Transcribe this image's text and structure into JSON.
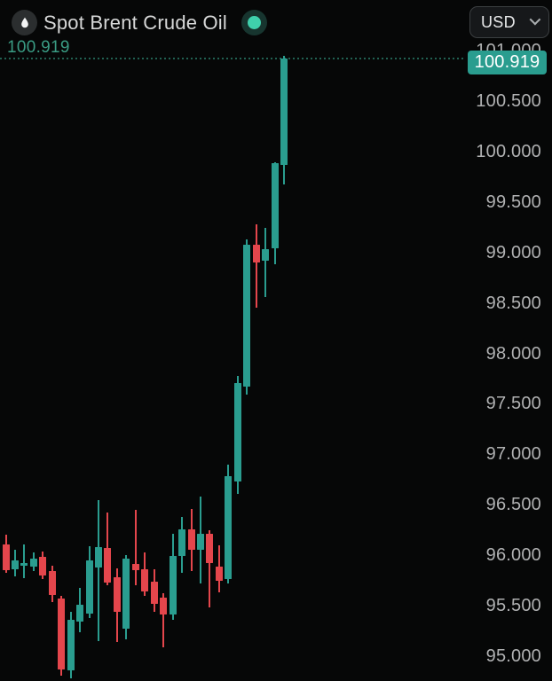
{
  "header": {
    "title": "Spot Brent Crude Oil",
    "instrument_icon": "oil-drop-icon",
    "live_indicator_icon": "live-status-dot",
    "currency_selector": {
      "value": "USD",
      "chevron_icon": "chevron-down-icon"
    }
  },
  "price_line": {
    "left_label": "100.919",
    "badge_label": "100.919"
  },
  "colors": {
    "background": "#060707",
    "up_candle": "#2a9d8f",
    "down_candle": "#e4464c",
    "badge_bg": "#2a9d8f",
    "badge_text": "#ffffff",
    "current_price_text": "#3a9c84",
    "dotted_line": "#216152",
    "axis_text": "#b0b1b2",
    "title_text": "#d7d8d8",
    "live_dot": "#3fd0ac",
    "live_ring": "#17352f",
    "icon_circle": "#2b2e2f",
    "button_bg": "#16181a",
    "button_border": "#3b3f41"
  },
  "chart_data": {
    "type": "candlestick",
    "title": "Spot Brent Crude Oil",
    "currency": "USD",
    "current_price": 100.919,
    "grid": false,
    "x_axis_labels": [],
    "y_axis": {
      "side": "right",
      "min": 95.0,
      "max": 101.0,
      "step": 0.5,
      "tick_labels": [
        "101.000",
        "100.500",
        "100.000",
        "99.500",
        "99.000",
        "98.500",
        "98.000",
        "97.500",
        "97.000",
        "96.500",
        "96.000",
        "95.500",
        "95.000"
      ]
    },
    "candles": [
      {
        "o": 96.11,
        "h": 96.2,
        "l": 95.83,
        "c": 95.85
      },
      {
        "o": 95.86,
        "h": 96.05,
        "l": 95.79,
        "c": 95.95
      },
      {
        "o": 95.9,
        "h": 96.11,
        "l": 95.77,
        "c": 95.92
      },
      {
        "o": 95.89,
        "h": 96.03,
        "l": 95.84,
        "c": 95.97
      },
      {
        "o": 95.98,
        "h": 96.04,
        "l": 95.76,
        "c": 95.8
      },
      {
        "o": 95.84,
        "h": 95.9,
        "l": 95.54,
        "c": 95.61
      },
      {
        "o": 95.57,
        "h": 95.6,
        "l": 94.81,
        "c": 94.87
      },
      {
        "o": 94.86,
        "h": 95.44,
        "l": 94.78,
        "c": 95.36
      },
      {
        "o": 95.34,
        "h": 95.68,
        "l": 95.24,
        "c": 95.51
      },
      {
        "o": 95.42,
        "h": 96.09,
        "l": 95.38,
        "c": 95.95
      },
      {
        "o": 95.88,
        "h": 96.55,
        "l": 95.15,
        "c": 96.08
      },
      {
        "o": 96.07,
        "h": 96.42,
        "l": 95.7,
        "c": 95.73
      },
      {
        "o": 95.78,
        "h": 95.87,
        "l": 95.14,
        "c": 95.44
      },
      {
        "o": 95.27,
        "h": 96.0,
        "l": 95.17,
        "c": 95.97
      },
      {
        "o": 95.91,
        "h": 96.45,
        "l": 95.7,
        "c": 95.85
      },
      {
        "o": 95.86,
        "h": 96.03,
        "l": 95.6,
        "c": 95.64
      },
      {
        "o": 95.74,
        "h": 95.86,
        "l": 95.44,
        "c": 95.52
      },
      {
        "o": 95.58,
        "h": 95.62,
        "l": 95.09,
        "c": 95.41
      },
      {
        "o": 95.41,
        "h": 96.21,
        "l": 95.36,
        "c": 95.99
      },
      {
        "o": 95.99,
        "h": 96.38,
        "l": 95.83,
        "c": 96.26
      },
      {
        "o": 96.26,
        "h": 96.46,
        "l": 95.84,
        "c": 96.05
      },
      {
        "o": 96.05,
        "h": 96.58,
        "l": 95.72,
        "c": 96.21
      },
      {
        "o": 96.21,
        "h": 96.25,
        "l": 95.48,
        "c": 95.92
      },
      {
        "o": 95.89,
        "h": 96.1,
        "l": 95.63,
        "c": 95.75
      },
      {
        "o": 95.76,
        "h": 96.9,
        "l": 95.72,
        "c": 96.78
      },
      {
        "o": 96.73,
        "h": 97.78,
        "l": 96.61,
        "c": 97.71
      },
      {
        "o": 97.67,
        "h": 99.13,
        "l": 97.59,
        "c": 99.08
      },
      {
        "o": 99.08,
        "h": 99.28,
        "l": 98.45,
        "c": 98.9
      },
      {
        "o": 98.92,
        "h": 99.24,
        "l": 98.56,
        "c": 99.03
      },
      {
        "o": 99.04,
        "h": 99.89,
        "l": 98.88,
        "c": 99.88
      },
      {
        "o": 99.87,
        "h": 100.95,
        "l": 99.67,
        "c": 100.919
      }
    ]
  }
}
